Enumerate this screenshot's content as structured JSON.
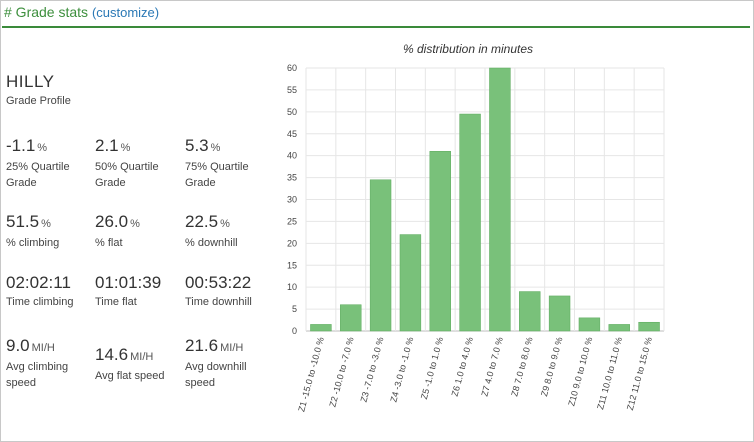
{
  "header": {
    "title": "# Grade stats",
    "customize_label": "(customize)"
  },
  "profile": {
    "value": "HILLY",
    "label": "Grade Profile"
  },
  "stats": [
    {
      "value": "-1.1",
      "unit": "%",
      "label": "25% Quartile Grade"
    },
    {
      "value": "2.1",
      "unit": "%",
      "label": "50% Quartile Grade"
    },
    {
      "value": "5.3",
      "unit": "%",
      "label": "75% Quartile Grade"
    },
    {
      "value": "51.5",
      "unit": "%",
      "label": "% climbing"
    },
    {
      "value": "26.0",
      "unit": "%",
      "label": "% flat"
    },
    {
      "value": "22.5",
      "unit": "%",
      "label": "% downhill"
    },
    {
      "value": "02:02:11",
      "unit": "",
      "label": "Time climbing"
    },
    {
      "value": "01:01:39",
      "unit": "",
      "label": "Time flat"
    },
    {
      "value": "00:53:22",
      "unit": "",
      "label": "Time downhill"
    },
    {
      "value": "9.0",
      "unit": "MI/H",
      "label": "Avg climbing speed"
    },
    {
      "value": "14.6",
      "unit": "MI/H",
      "label": "Avg flat speed"
    },
    {
      "value": "21.6",
      "unit": "MI/H",
      "label": "Avg downhill speed"
    }
  ],
  "colors": {
    "accent": "#3a8a3a",
    "link": "#2a78b5",
    "bar": "#79c17a"
  },
  "chart_data": {
    "type": "bar",
    "title": "% distribution in minutes",
    "xlabel": "",
    "ylabel": "",
    "ylim": [
      0,
      60
    ],
    "yticks": [
      0,
      5,
      10,
      15,
      20,
      25,
      30,
      35,
      40,
      45,
      50,
      55,
      60
    ],
    "grid": true,
    "categories": [
      "Z1 -15.0 to -10.0 %",
      "Z2 -10.0 to -7.0 %",
      "Z3 -7.0 to -3.0 %",
      "Z4 -3.0 to -1.0 %",
      "Z5 -1.0 to 1.0 %",
      "Z6 1.0 to 4.0 %",
      "Z7 4.0 to 7.0 %",
      "Z8 7.0 to 8.0 %",
      "Z9 8.0 to 9.0 %",
      "Z10 9.0 to 10.0 %",
      "Z11 10.0 to 11.0 %",
      "Z12 11.0 to 15.0 %"
    ],
    "values": [
      1.5,
      6,
      34.5,
      22,
      41,
      49.5,
      60,
      9,
      8,
      3,
      1.5,
      2
    ]
  }
}
